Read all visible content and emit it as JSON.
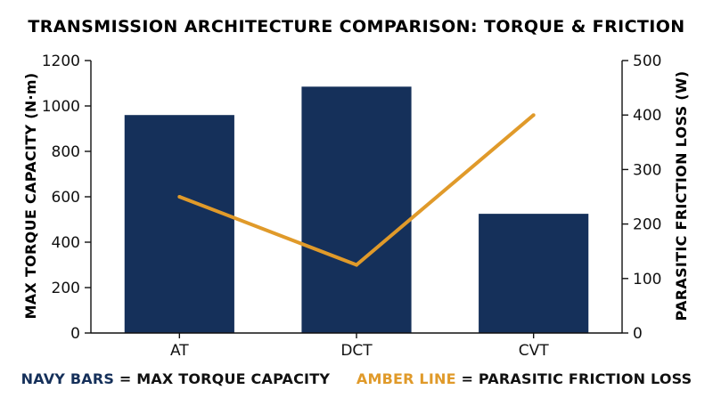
{
  "chart_data": {
    "type": "bar",
    "title": "TRANSMISSION ARCHITECTURE COMPARISON: TORQUE & FRICTION",
    "categories": [
      "AT",
      "DCT",
      "CVT"
    ],
    "series": [
      {
        "name": "MAX TORQUE CAPACITY",
        "type": "bar",
        "axis": "left",
        "color": "#15305a",
        "values": [
          960,
          1085,
          525
        ]
      },
      {
        "name": "PARASITIC FRICTION LOSS",
        "type": "line",
        "axis": "right",
        "color": "#e09a2a",
        "values": [
          250,
          125,
          400
        ]
      }
    ],
    "ylabel": "MAX TORQUE CAPACITY (N·m)",
    "y2label": "PARASITIC FRICTION LOSS (W)",
    "ylim": [
      0,
      1200
    ],
    "y2lim": [
      0,
      500
    ],
    "yticks": [
      "0",
      "200",
      "400",
      "600",
      "800",
      "1000",
      "1200"
    ],
    "y2ticks": [
      "0",
      "100",
      "200",
      "300",
      "400",
      "500"
    ],
    "grid": false,
    "legend": {
      "position": "bottom",
      "bar_key": "NAVY BARS",
      "bar_text": " = MAX TORQUE CAPACITY",
      "line_key": "AMBER LINE",
      "line_text": " = PARASITIC FRICTION LOSS"
    }
  }
}
